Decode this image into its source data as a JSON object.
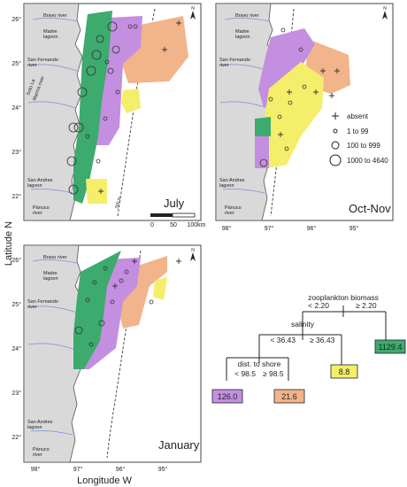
{
  "axes": {
    "ylabel": "Latitude N",
    "xlabel": "Longitude W",
    "lat_ticks": [
      "26°",
      "25°",
      "24°",
      "23°",
      "22°"
    ],
    "lon_ticks": [
      "98°",
      "97°",
      "96°",
      "95°"
    ]
  },
  "places": {
    "bravo": "Bravo river",
    "madre1": "Madre",
    "madre2": "lagoon",
    "sanfer1": "San Fernando",
    "sanfer2": "river",
    "soto1": "Soto La",
    "soto2": "Marina river",
    "sanandres1": "San Andres",
    "sanandres2": "lagoon",
    "panuco1": "Pánuco",
    "panuco2": "river",
    "isobath": "200 m"
  },
  "north_label": "N",
  "panels": {
    "july": "July",
    "octnov": "Oct-Nov",
    "january": "January"
  },
  "scalebar": {
    "ticks": [
      "0",
      "50",
      "100km"
    ]
  },
  "legend": {
    "items": [
      "absent",
      "1 to 99",
      "100 to 999",
      "1000 to 4640"
    ]
  },
  "tree": {
    "root": "zooplankton biomass",
    "root_left": "< 2.20",
    "root_right": "≥ 2.20",
    "n2": "salinity",
    "n2_left": "< 36.43",
    "n2_right": "≥ 36.43",
    "n3": "dist. to shore",
    "n3_left": "< 98.5",
    "n3_right": "≥ 98.5",
    "leaves": [
      "126.0",
      "21.6",
      "8.8",
      "1129.4"
    ]
  },
  "colors": {
    "green": "#3daa6e",
    "purple": "#c48fe0",
    "orange": "#f2b48a",
    "yellow": "#f5ee6a",
    "land": "#d9d9d9"
  }
}
